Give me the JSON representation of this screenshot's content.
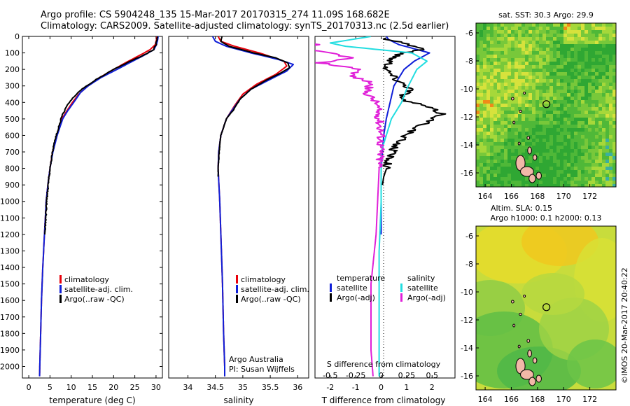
{
  "header": {
    "line1": "Argo profile: CS 5904248_135 15-Mar-2017 20170315_274 11.09S 168.682E",
    "line2": "Climatology: CARS2009. Satellite-adjusted climatology: synTS_20170313.nc (2.5d earlier)"
  },
  "colors": {
    "climatology": "#e8000b",
    "satellite": "#0f1fd8",
    "argo": "#000000",
    "satellite_s": "#22dde0",
    "argo_s": "#e020d8"
  },
  "depth_axis": {
    "ticks": [
      0,
      100,
      200,
      300,
      400,
      500,
      600,
      700,
      800,
      900,
      1000,
      1100,
      1200,
      1300,
      1400,
      1500,
      1600,
      1700,
      1800,
      1900,
      2000
    ],
    "range": [
      0,
      2070
    ]
  },
  "chart_data": [
    {
      "type": "line",
      "id": "temperature",
      "xlabel": "temperature (deg C)",
      "xlim": [
        -1.5,
        31.5
      ],
      "xticks": [
        0,
        5,
        10,
        15,
        20,
        25,
        30
      ],
      "ylim": [
        2070,
        0
      ],
      "legend": [
        "climatology",
        "satellite-adj. clim.",
        "Argo(..raw -QC)"
      ],
      "series": [
        {
          "name": "climatology",
          "color": "#e8000b",
          "points": [
            [
              30.2,
              0
            ],
            [
              30.1,
              20
            ],
            [
              29.8,
              50
            ],
            [
              28.6,
              80
            ],
            [
              26.5,
              110
            ],
            [
              23.5,
              150
            ],
            [
              20,
              200
            ],
            [
              16,
              260
            ],
            [
              13.5,
              310
            ],
            [
              11.8,
              350
            ],
            [
              10.3,
              400
            ],
            [
              9,
              450
            ],
            [
              7.8,
              500
            ],
            [
              6.6,
              600
            ],
            [
              5.6,
              700
            ],
            [
              5,
              800
            ],
            [
              4.5,
              900
            ],
            [
              4.1,
              1000
            ],
            [
              3.7,
              1200
            ],
            [
              3.3,
              1400
            ],
            [
              3,
              1600
            ],
            [
              2.8,
              1800
            ],
            [
              2.6,
              2000
            ],
            [
              2.55,
              2060
            ]
          ]
        },
        {
          "name": "satellite-adj. clim.",
          "color": "#0f1fd8",
          "points": [
            [
              30.5,
              0
            ],
            [
              30.4,
              20
            ],
            [
              30.1,
              50
            ],
            [
              29.5,
              80
            ],
            [
              27.5,
              110
            ],
            [
              24.5,
              150
            ],
            [
              20.8,
              200
            ],
            [
              17,
              250
            ],
            [
              14,
              300
            ],
            [
              12.2,
              340
            ],
            [
              10.6,
              400
            ],
            [
              9.2,
              450
            ],
            [
              8,
              500
            ],
            [
              6.7,
              600
            ],
            [
              5.7,
              700
            ],
            [
              5,
              800
            ],
            [
              4.5,
              900
            ],
            [
              4.1,
              1000
            ],
            [
              3.7,
              1200
            ],
            [
              3.3,
              1400
            ],
            [
              3,
              1600
            ],
            [
              2.8,
              1800
            ],
            [
              2.6,
              2000
            ],
            [
              2.55,
              2060
            ]
          ]
        },
        {
          "name": "Argo(..raw -QC)",
          "color": "#000000",
          "points": [
            [
              30.3,
              0
            ],
            [
              30.2,
              20
            ],
            [
              30,
              50
            ],
            [
              29.4,
              80
            ],
            [
              27.4,
              110
            ],
            [
              24,
              150
            ],
            [
              20,
              200
            ],
            [
              16,
              260
            ],
            [
              13,
              310
            ],
            [
              11.2,
              350
            ],
            [
              9.5,
              400
            ],
            [
              8.4,
              450
            ],
            [
              7.6,
              500
            ],
            [
              6.5,
              600
            ],
            [
              5.6,
              700
            ],
            [
              5,
              800
            ],
            [
              4.6,
              900
            ],
            [
              4.2,
              1000
            ],
            [
              3.8,
              1200
            ]
          ]
        }
      ]
    },
    {
      "type": "line",
      "id": "salinity",
      "xlabel": "salinity",
      "xlim": [
        33.65,
        36.2
      ],
      "xticks": [
        34,
        34.5,
        35,
        35.5,
        36
      ],
      "xtick_labels": [
        "34",
        "34.5",
        "35",
        "35.5",
        "36"
      ],
      "ylim": [
        2070,
        0
      ],
      "legend": [
        "climatology",
        "satellite-adj. clim.",
        "Argo(..raw -QC)"
      ],
      "series": [
        {
          "name": "climatology",
          "color": "#e8000b",
          "points": [
            [
              34.55,
              0
            ],
            [
              34.6,
              30
            ],
            [
              34.85,
              60
            ],
            [
              35.3,
              100
            ],
            [
              35.75,
              150
            ],
            [
              35.8,
              180
            ],
            [
              35.6,
              230
            ],
            [
              35.25,
              290
            ],
            [
              35,
              350
            ],
            [
              34.85,
              420
            ],
            [
              34.7,
              500
            ],
            [
              34.6,
              600
            ],
            [
              34.56,
              700
            ],
            [
              34.55,
              800
            ],
            [
              34.58,
              1000
            ],
            [
              34.6,
              1200
            ],
            [
              34.63,
              1500
            ],
            [
              34.65,
              1800
            ],
            [
              34.67,
              2000
            ],
            [
              34.67,
              2060
            ]
          ]
        },
        {
          "name": "satellite-adj. clim.",
          "color": "#0f1fd8",
          "points": [
            [
              34.45,
              0
            ],
            [
              34.5,
              30
            ],
            [
              34.7,
              60
            ],
            [
              35.15,
              100
            ],
            [
              35.65,
              140
            ],
            [
              35.92,
              170
            ],
            [
              35.8,
              210
            ],
            [
              35.5,
              260
            ],
            [
              35.15,
              320
            ],
            [
              34.95,
              380
            ],
            [
              34.8,
              450
            ],
            [
              34.7,
              500
            ],
            [
              34.6,
              600
            ],
            [
              34.56,
              700
            ],
            [
              34.55,
              800
            ],
            [
              34.58,
              1000
            ],
            [
              34.6,
              1200
            ],
            [
              34.63,
              1500
            ],
            [
              34.65,
              1800
            ],
            [
              34.67,
              2000
            ],
            [
              34.67,
              2060
            ]
          ]
        },
        {
          "name": "Argo(..raw -QC)",
          "color": "#000000",
          "points": [
            [
              34.62,
              0
            ],
            [
              34.6,
              30
            ],
            [
              34.75,
              60
            ],
            [
              35.2,
              100
            ],
            [
              35.6,
              130
            ],
            [
              35.82,
              160
            ],
            [
              35.85,
              190
            ],
            [
              35.7,
              220
            ],
            [
              35.4,
              270
            ],
            [
              35.15,
              320
            ],
            [
              34.95,
              380
            ],
            [
              34.82,
              450
            ],
            [
              34.7,
              500
            ],
            [
              34.6,
              600
            ],
            [
              34.57,
              700
            ],
            [
              34.55,
              800
            ],
            [
              34.55,
              850
            ]
          ]
        }
      ]
    },
    {
      "type": "line",
      "id": "difference",
      "xlabel": "T difference from climatology",
      "xlabel2": "S difference from climatology",
      "xlim": [
        -2.6,
        2.9
      ],
      "xticks": [
        -2,
        -1,
        0,
        1,
        2
      ],
      "s_ticks": [
        -0.5,
        -0.25,
        0,
        0.25,
        0.5
      ],
      "s_tick_labels": [
        "-0.5",
        "-0.25",
        "0",
        "0.25",
        "0.5"
      ],
      "ylim": [
        2070,
        0
      ],
      "legend_t": [
        "temperature",
        "satellite",
        "Argo(-adj)"
      ],
      "legend_s": [
        "salinity",
        "satellite",
        "Argo(-adj)"
      ],
      "series": [
        {
          "name": "satellite",
          "group": "temperature",
          "color": "#0f1fd8",
          "points": [
            [
              0.2,
              0
            ],
            [
              0.3,
              20
            ],
            [
              0.7,
              50
            ],
            [
              1.9,
              100
            ],
            [
              1.3,
              150
            ],
            [
              0.9,
              200
            ],
            [
              0.5,
              300
            ],
            [
              0.35,
              400
            ],
            [
              0.2,
              500
            ],
            [
              0.1,
              600
            ],
            [
              0.05,
              700
            ],
            [
              0,
              800
            ],
            [
              0,
              1000
            ],
            [
              0,
              1200
            ]
          ]
        },
        {
          "name": "Argo(-adj)",
          "group": "temperature",
          "color": "#000000",
          "points": [
            [
              0.1,
              10
            ],
            [
              0.9,
              40
            ],
            [
              1.3,
              60
            ],
            [
              1.7,
              80
            ],
            [
              0.8,
              100
            ],
            [
              0.4,
              140
            ],
            [
              0.2,
              200
            ],
            [
              0.6,
              260
            ],
            [
              1.2,
              320
            ],
            [
              0.7,
              380
            ],
            [
              1.7,
              420
            ],
            [
              2.4,
              470
            ],
            [
              1.8,
              520
            ],
            [
              0.9,
              600
            ],
            [
              0.5,
              680
            ],
            [
              0.3,
              760
            ],
            [
              0.1,
              850
            ],
            [
              0.05,
              900
            ]
          ]
        },
        {
          "name": "satellite",
          "group": "salinity",
          "color": "#22dde0",
          "points": [
            [
              -0.1,
              0
            ],
            [
              -0.3,
              20
            ],
            [
              -0.5,
              40
            ],
            [
              -0.35,
              60
            ],
            [
              0.3,
              100
            ],
            [
              0.45,
              150
            ],
            [
              0.35,
              200
            ],
            [
              0.3,
              260
            ],
            [
              0.25,
              320
            ],
            [
              0.2,
              400
            ],
            [
              0.1,
              500
            ],
            [
              0.05,
              600
            ],
            [
              0,
              700
            ],
            [
              0,
              1000
            ],
            [
              -0.02,
              1300
            ],
            [
              -0.02,
              2060
            ]
          ]
        },
        {
          "name": "Argo(-adj)",
          "group": "salinity",
          "color": "#e020d8",
          "points": [
            [
              -1.6,
              10
            ],
            [
              -1,
              30
            ],
            [
              -0.6,
              50
            ],
            [
              -0.9,
              70
            ],
            [
              -0.5,
              100
            ],
            [
              -0.3,
              130
            ],
            [
              -0.6,
              160
            ],
            [
              -0.2,
              200
            ],
            [
              -0.3,
              240
            ],
            [
              -0.1,
              280
            ],
            [
              -0.15,
              340
            ],
            [
              -0.05,
              400
            ],
            [
              -0.02,
              500
            ],
            [
              0,
              600
            ],
            [
              -0.02,
              800
            ],
            [
              -0.05,
              1200
            ],
            [
              -0.1,
              1500
            ],
            [
              -0.1,
              1900
            ],
            [
              -0.08,
              2060
            ]
          ]
        }
      ]
    },
    {
      "type": "heatmap",
      "id": "sst_map",
      "title": "sat. SST: 30.3 Argo: 29.9",
      "xticks": [
        164,
        166,
        168,
        170,
        172
      ],
      "yticks": [
        -6,
        -8,
        -10,
        -12,
        -14,
        -16
      ],
      "xlim": [
        163.3,
        174
      ],
      "ylim": [
        -17,
        -5.3
      ],
      "float_position": [
        168.682,
        -11.09
      ]
    },
    {
      "type": "heatmap",
      "id": "sla_map",
      "title": "Altim. SLA: 0.15",
      "subtitle": "Argo h1000: 0.1 h2000: 0.13",
      "xticks": [
        164,
        166,
        168,
        170,
        172
      ],
      "yticks": [
        -6,
        -8,
        -10,
        -12,
        -14,
        -16
      ],
      "xlim": [
        163.3,
        174
      ],
      "ylim": [
        -17,
        -5.3
      ],
      "float_position": [
        168.682,
        -11.09
      ]
    }
  ],
  "text_blocks": {
    "credit_line1": "Argo Australia",
    "credit_line2": "PI: Susan Wijffels",
    "side_stamp": "©IMOS 20-Mar-2017 20:40:22"
  }
}
